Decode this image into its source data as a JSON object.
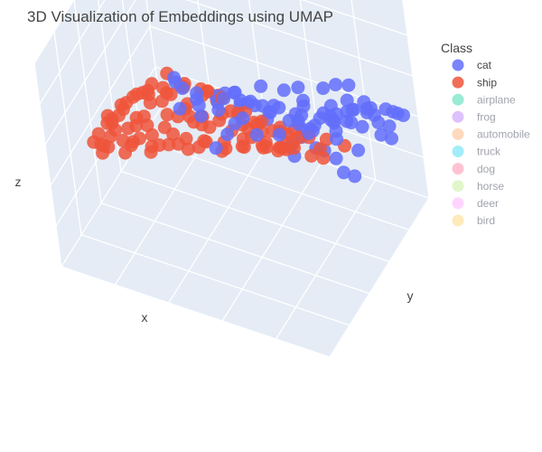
{
  "chart_data": {
    "type": "scatter",
    "dimensions": 3,
    "title": "3D Visualization of Embeddings using UMAP",
    "xlabel": "x",
    "ylabel": "y",
    "zlabel": "z",
    "grid": true,
    "legend": {
      "title": "Class",
      "placement": "top-right",
      "items": [
        {
          "name": "cat",
          "color": "#636efa",
          "visible": true
        },
        {
          "name": "ship",
          "color": "#ef553b",
          "visible": true
        },
        {
          "name": "airplane",
          "color": "#00cc96",
          "visible": false
        },
        {
          "name": "frog",
          "color": "#ab63fa",
          "visible": false
        },
        {
          "name": "automobile",
          "color": "#ffa15a",
          "visible": false
        },
        {
          "name": "truck",
          "color": "#19d3f3",
          "visible": false
        },
        {
          "name": "dog",
          "color": "#ff6692",
          "visible": false
        },
        {
          "name": "horse",
          "color": "#b6e880",
          "visible": false
        },
        {
          "name": "deer",
          "color": "#ff97ff",
          "visible": false
        },
        {
          "name": "bird",
          "color": "#fecb52",
          "visible": false
        }
      ]
    },
    "series": [
      {
        "name": "cat",
        "color": "#636efa",
        "points": [
          [
            0.55,
            0.15,
            0.92
          ],
          [
            0.6,
            0.2,
            0.88
          ],
          [
            0.65,
            0.25,
            0.95
          ],
          [
            0.58,
            0.3,
            0.85
          ],
          [
            0.7,
            0.18,
            0.9
          ],
          [
            0.52,
            0.22,
            0.8
          ],
          [
            0.62,
            0.35,
            0.82
          ],
          [
            0.68,
            0.4,
            0.78
          ],
          [
            0.75,
            0.3,
            0.86
          ],
          [
            0.72,
            0.45,
            0.75
          ],
          [
            0.8,
            0.35,
            0.8
          ],
          [
            0.78,
            0.5,
            0.7
          ],
          [
            0.85,
            0.45,
            0.72
          ],
          [
            0.82,
            0.6,
            0.65
          ],
          [
            0.88,
            0.55,
            0.68
          ],
          [
            0.9,
            0.65,
            0.6
          ],
          [
            0.86,
            0.7,
            0.55
          ],
          [
            0.92,
            0.75,
            0.58
          ],
          [
            0.8,
            0.72,
            0.5
          ],
          [
            0.84,
            0.8,
            0.52
          ],
          [
            0.76,
            0.78,
            0.45
          ],
          [
            0.9,
            0.85,
            0.48
          ],
          [
            0.7,
            0.82,
            0.4
          ],
          [
            0.78,
            0.88,
            0.42
          ],
          [
            0.85,
            0.9,
            0.45
          ],
          [
            0.66,
            0.75,
            0.38
          ],
          [
            0.72,
            0.92,
            0.35
          ],
          [
            0.6,
            0.85,
            0.32
          ],
          [
            0.68,
            0.95,
            0.3
          ],
          [
            0.74,
            0.98,
            0.38
          ],
          [
            0.55,
            0.7,
            0.42
          ],
          [
            0.5,
            0.6,
            0.55
          ],
          [
            0.58,
            0.55,
            0.62
          ],
          [
            0.48,
            0.45,
            0.7
          ],
          [
            0.45,
            0.35,
            0.75
          ],
          [
            0.4,
            0.3,
            0.85
          ],
          [
            0.5,
            0.25,
            0.88
          ],
          [
            0.45,
            0.2,
            0.82
          ],
          [
            0.64,
            0.6,
            0.48
          ],
          [
            0.7,
            0.65,
            0.44
          ],
          [
            0.76,
            0.62,
            0.52
          ],
          [
            0.82,
            0.68,
            0.46
          ],
          [
            0.88,
            0.72,
            0.4
          ],
          [
            0.94,
            0.8,
            0.44
          ],
          [
            0.96,
            0.88,
            0.5
          ],
          [
            0.92,
            0.92,
            0.38
          ],
          [
            0.86,
            0.96,
            0.34
          ],
          [
            0.8,
            0.95,
            0.3
          ],
          [
            0.62,
            0.9,
            0.25
          ],
          [
            0.56,
            0.92,
            0.28
          ],
          [
            0.66,
            0.5,
            0.66
          ],
          [
            0.6,
            0.45,
            0.72
          ],
          [
            0.74,
            0.55,
            0.6
          ],
          [
            0.8,
            0.5,
            0.62
          ],
          [
            0.86,
            0.6,
            0.58
          ],
          [
            0.54,
            0.4,
            0.78
          ],
          [
            0.62,
            0.28,
            0.76
          ],
          [
            0.68,
            0.32,
            0.7
          ],
          [
            0.74,
            0.38,
            0.68
          ],
          [
            0.58,
            0.18,
            0.7
          ],
          [
            0.42,
            0.25,
            0.92
          ],
          [
            0.48,
            0.18,
            0.95
          ],
          [
            0.66,
            0.12,
            0.85
          ],
          [
            0.72,
            0.22,
            0.96
          ],
          [
            0.78,
            0.28,
            0.92
          ],
          [
            0.84,
            0.4,
            0.85
          ],
          [
            0.9,
            0.5,
            0.8
          ],
          [
            0.94,
            0.6,
            0.72
          ],
          [
            0.96,
            0.7,
            0.66
          ],
          [
            0.98,
            0.78,
            0.6
          ],
          [
            0.7,
            0.7,
            0.58
          ],
          [
            0.64,
            0.68,
            0.62
          ],
          [
            0.58,
            0.62,
            0.66
          ],
          [
            0.52,
            0.52,
            0.68
          ],
          [
            0.46,
            0.5,
            0.62
          ],
          [
            0.88,
            0.82,
            0.56
          ],
          [
            0.82,
            0.84,
            0.6
          ],
          [
            0.76,
            0.86,
            0.56
          ],
          [
            0.7,
            0.88,
            0.5
          ],
          [
            0.64,
            0.8,
            0.54
          ],
          [
            0.9,
            0.62,
            0.36
          ],
          [
            0.84,
            0.66,
            0.32
          ],
          [
            0.78,
            0.74,
            0.3
          ],
          [
            0.72,
            0.78,
            0.28
          ],
          [
            0.66,
            0.84,
            0.22
          ],
          [
            0.6,
            0.78,
            0.2
          ],
          [
            0.56,
            0.84,
            0.18
          ],
          [
            0.96,
            0.84,
            0.4
          ],
          [
            0.98,
            0.92,
            0.46
          ],
          [
            0.94,
            0.96,
            0.42
          ]
        ]
      },
      {
        "name": "ship",
        "color": "#ef553b",
        "points": [
          [
            0.05,
            0.3,
            0.4
          ],
          [
            0.08,
            0.35,
            0.35
          ],
          [
            0.1,
            0.25,
            0.45
          ],
          [
            0.12,
            0.4,
            0.3
          ],
          [
            0.06,
            0.45,
            0.38
          ],
          [
            0.14,
            0.3,
            0.5
          ],
          [
            0.18,
            0.35,
            0.42
          ],
          [
            0.16,
            0.45,
            0.35
          ],
          [
            0.2,
            0.28,
            0.55
          ],
          [
            0.22,
            0.4,
            0.48
          ],
          [
            0.25,
            0.32,
            0.6
          ],
          [
            0.24,
            0.5,
            0.4
          ],
          [
            0.28,
            0.45,
            0.52
          ],
          [
            0.3,
            0.38,
            0.65
          ],
          [
            0.32,
            0.55,
            0.45
          ],
          [
            0.35,
            0.48,
            0.58
          ],
          [
            0.34,
            0.6,
            0.38
          ],
          [
            0.38,
            0.52,
            0.5
          ],
          [
            0.4,
            0.65,
            0.42
          ],
          [
            0.42,
            0.58,
            0.55
          ],
          [
            0.45,
            0.7,
            0.35
          ],
          [
            0.48,
            0.62,
            0.48
          ],
          [
            0.5,
            0.75,
            0.3
          ],
          [
            0.52,
            0.68,
            0.4
          ],
          [
            0.55,
            0.8,
            0.28
          ],
          [
            0.1,
            0.5,
            0.25
          ],
          [
            0.15,
            0.55,
            0.2
          ],
          [
            0.2,
            0.6,
            0.22
          ],
          [
            0.25,
            0.65,
            0.18
          ],
          [
            0.3,
            0.7,
            0.2
          ],
          [
            0.35,
            0.75,
            0.15
          ],
          [
            0.4,
            0.8,
            0.18
          ],
          [
            0.45,
            0.85,
            0.12
          ],
          [
            0.28,
            0.58,
            0.3
          ],
          [
            0.33,
            0.62,
            0.28
          ],
          [
            0.38,
            0.68,
            0.25
          ],
          [
            0.43,
            0.72,
            0.22
          ],
          [
            0.48,
            0.78,
            0.2
          ],
          [
            0.22,
            0.48,
            0.32
          ],
          [
            0.26,
            0.52,
            0.36
          ],
          [
            0.12,
            0.2,
            0.55
          ],
          [
            0.15,
            0.22,
            0.6
          ],
          [
            0.18,
            0.2,
            0.65
          ],
          [
            0.22,
            0.22,
            0.7
          ],
          [
            0.25,
            0.25,
            0.75
          ],
          [
            0.28,
            0.22,
            0.8
          ],
          [
            0.3,
            0.28,
            0.72
          ],
          [
            0.33,
            0.25,
            0.85
          ],
          [
            0.36,
            0.3,
            0.78
          ],
          [
            0.38,
            0.28,
            0.9
          ],
          [
            0.4,
            0.35,
            0.68
          ],
          [
            0.42,
            0.32,
            0.82
          ],
          [
            0.44,
            0.4,
            0.62
          ],
          [
            0.46,
            0.38,
            0.75
          ],
          [
            0.48,
            0.45,
            0.58
          ],
          [
            0.5,
            0.5,
            0.5
          ],
          [
            0.55,
            0.55,
            0.45
          ],
          [
            0.58,
            0.6,
            0.4
          ],
          [
            0.62,
            0.65,
            0.35
          ],
          [
            0.6,
            0.48,
            0.6
          ],
          [
            0.65,
            0.52,
            0.55
          ],
          [
            0.68,
            0.58,
            0.5
          ],
          [
            0.58,
            0.4,
            0.7
          ],
          [
            0.55,
            0.35,
            0.8
          ],
          [
            0.52,
            0.3,
            0.86
          ],
          [
            0.62,
            0.38,
            0.74
          ],
          [
            0.66,
            0.42,
            0.68
          ],
          [
            0.7,
            0.48,
            0.62
          ],
          [
            0.72,
            0.55,
            0.56
          ],
          [
            0.75,
            0.6,
            0.5
          ],
          [
            0.78,
            0.68,
            0.44
          ],
          [
            0.82,
            0.74,
            0.38
          ],
          [
            0.74,
            0.72,
            0.3
          ],
          [
            0.68,
            0.75,
            0.26
          ],
          [
            0.64,
            0.7,
            0.32
          ],
          [
            0.08,
            0.38,
            0.48
          ],
          [
            0.12,
            0.42,
            0.52
          ],
          [
            0.16,
            0.38,
            0.58
          ],
          [
            0.2,
            0.44,
            0.6
          ],
          [
            0.24,
            0.4,
            0.66
          ],
          [
            0.04,
            0.4,
            0.3
          ],
          [
            0.08,
            0.48,
            0.28
          ],
          [
            0.12,
            0.52,
            0.34
          ],
          [
            0.18,
            0.5,
            0.28
          ],
          [
            0.14,
            0.6,
            0.24
          ],
          [
            0.2,
            0.68,
            0.16
          ],
          [
            0.26,
            0.72,
            0.14
          ],
          [
            0.32,
            0.78,
            0.1
          ],
          [
            0.38,
            0.84,
            0.1
          ],
          [
            0.44,
            0.9,
            0.08
          ],
          [
            0.5,
            0.88,
            0.12
          ],
          [
            0.54,
            0.86,
            0.18
          ],
          [
            0.58,
            0.82,
            0.22
          ],
          [
            0.36,
            0.42,
            0.72
          ],
          [
            0.32,
            0.36,
            0.74
          ],
          [
            0.3,
            0.46,
            0.62
          ],
          [
            0.34,
            0.5,
            0.66
          ],
          [
            0.26,
            0.36,
            0.68
          ],
          [
            0.22,
            0.32,
            0.58
          ],
          [
            0.18,
            0.26,
            0.62
          ],
          [
            0.1,
            0.34,
            0.42
          ],
          [
            0.06,
            0.34,
            0.32
          ],
          [
            0.42,
            0.46,
            0.7
          ],
          [
            0.46,
            0.52,
            0.64
          ],
          [
            0.4,
            0.56,
            0.6
          ],
          [
            0.6,
            0.72,
            0.28
          ],
          [
            0.56,
            0.76,
            0.24
          ],
          [
            0.52,
            0.82,
            0.16
          ],
          [
            0.7,
            0.62,
            0.46
          ],
          [
            0.76,
            0.66,
            0.4
          ],
          [
            0.34,
            0.66,
            0.32
          ],
          [
            0.3,
            0.62,
            0.36
          ],
          [
            0.26,
            0.58,
            0.4
          ],
          [
            0.44,
            0.64,
            0.46
          ],
          [
            0.48,
            0.68,
            0.36
          ]
        ]
      }
    ]
  }
}
